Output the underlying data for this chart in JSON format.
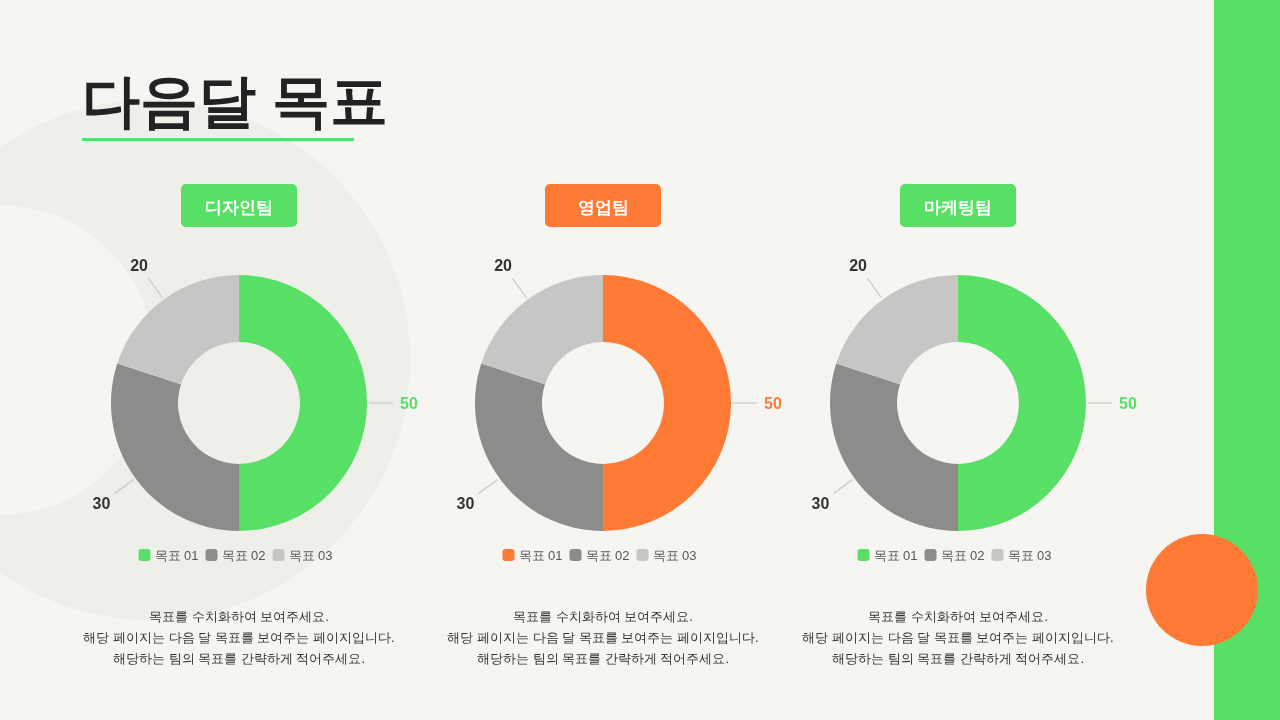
{
  "chart_data": [
    {
      "type": "other",
      "title": "다음달 목표"
    },
    {
      "type": "donut",
      "title": "디자인팀",
      "categories": [
        "목표 01",
        "목표 02",
        "목표 03"
      ],
      "values": [
        50,
        30,
        20
      ],
      "colors": [
        "#57e065",
        "#8e8c8b",
        "#c8c6c4"
      ],
      "data_labels": true,
      "legend": "bottom",
      "annotations": [
        "목표를 수치화하여 보여주세요.",
        "해당 페이지는 다음 달 목표를 보여주는 페이지입니다.",
        "해당하는 팀의 목표를 간략하게 적어주세요."
      ]
    },
    {
      "type": "donut",
      "title": "영업팀",
      "categories": [
        "목표 01",
        "목표 02",
        "목표 03"
      ],
      "values": [
        50,
        30,
        20
      ],
      "colors": [
        "#ff7a35",
        "#8e8c8b",
        "#c8c6c4"
      ],
      "data_labels": true,
      "legend": "bottom",
      "annotations": [
        "목표를 수치화하여 보여주세요.",
        "해당 페이지는 다음 달 목표를 보여주는 페이지입니다.",
        "해당하는 팀의 목표를 간략하게 적어주세요."
      ]
    },
    {
      "type": "donut",
      "title": "마케팅팀",
      "categories": [
        "목표 01",
        "목표 02",
        "목표 03"
      ],
      "values": [
        50,
        30,
        20
      ],
      "colors": [
        "#57e065",
        "#8e8c8b",
        "#c8c6c4"
      ],
      "data_labels": true,
      "legend": "bottom",
      "annotations": [
        "목표를 수치화하여 보여주세요.",
        "해당 페이지는 다음 달 목표를 보여주는 페이지입니다.",
        "해당하는 팀의 목표를 간략하게 적어주세요."
      ]
    }
  ]
}
